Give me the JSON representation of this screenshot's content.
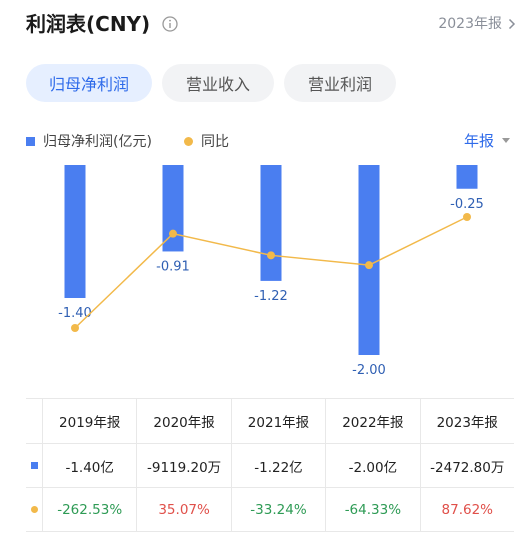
{
  "header": {
    "title": "利润表(CNY)",
    "period_label": "2023年报"
  },
  "tabs": [
    {
      "label": "归母净利润",
      "active": true
    },
    {
      "label": "营业收入",
      "active": false
    },
    {
      "label": "营业利润",
      "active": false
    }
  ],
  "legend": {
    "bar_series": "归母净利润(亿元)",
    "line_series": "同比",
    "period_select": "年报"
  },
  "colors": {
    "bar": "#4a7ef0",
    "line": "#f2b94a",
    "accent": "#2f6bea",
    "positive": "#e0504a",
    "negative": "#2e9b55"
  },
  "chart_data": {
    "type": "bar",
    "categories": [
      "2019年报",
      "2020年报",
      "2021年报",
      "2022年报",
      "2023年报"
    ],
    "series": [
      {
        "name": "归母净利润(亿元)",
        "type": "bar",
        "values": [
          -1.4,
          -0.91,
          -1.22,
          -2.0,
          -0.25
        ],
        "labels": [
          "-1.40",
          "-0.91",
          "-1.22",
          "-2.00",
          "-0.25"
        ]
      },
      {
        "name": "同比",
        "type": "line",
        "values": [
          -262.53,
          35.07,
          -33.24,
          -64.33,
          87.62
        ]
      }
    ]
  },
  "table": {
    "headers": [
      "2019年报",
      "2020年报",
      "2021年报",
      "2022年报",
      "2023年报"
    ],
    "profit_row": [
      "-1.40亿",
      "-9119.20万",
      "-1.22亿",
      "-2.00亿",
      "-2472.80万"
    ],
    "yoy_row": [
      "-262.53%",
      "35.07%",
      "-33.24%",
      "-64.33%",
      "87.62%"
    ]
  }
}
